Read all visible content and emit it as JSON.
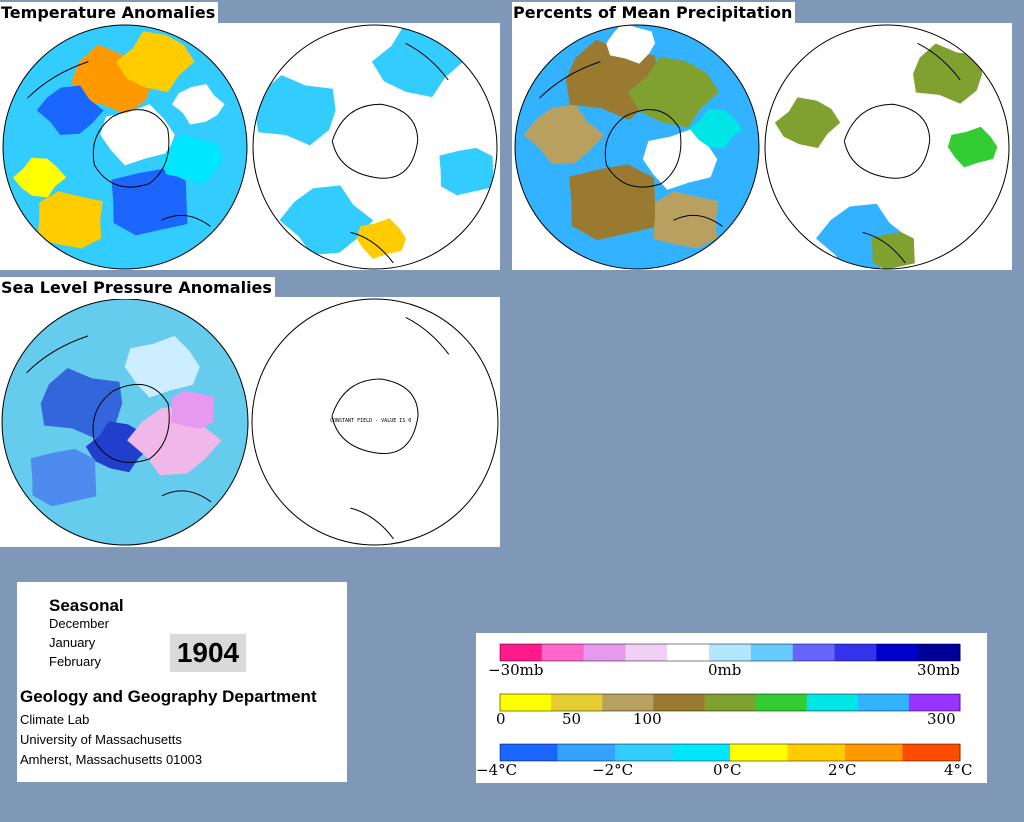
{
  "titles": {
    "temperature": "Temperature Anomalies",
    "precipitation": "Percents of Mean Precipitation",
    "pressure": "Sea Level Pressure Anomalies"
  },
  "map_note": "CONSTANT FIELD - VALUE IS 0",
  "info": {
    "season": "Seasonal",
    "months": [
      "December",
      "January",
      "February"
    ],
    "year": "1904",
    "department": "Geology and Geography Department",
    "lines": [
      "Climate Lab",
      "University of Massachusetts",
      "Amherst, Massachusetts 01003"
    ]
  },
  "legends": {
    "pressure": {
      "labels": [
        "−30mb",
        "0mb",
        "30mb"
      ],
      "colors": [
        "#ff1a8c",
        "#ff66cc",
        "#e699ee",
        "#f0d0f5",
        "#ffffff",
        "#b3e6ff",
        "#66ccff",
        "#6666ff",
        "#3333ee",
        "#0000cc",
        "#000099"
      ]
    },
    "precipitation": {
      "labels": [
        "0",
        "50",
        "100",
        "300"
      ],
      "colors": [
        "#ffff00",
        "#e6cc33",
        "#b8a060",
        "#9a7a30",
        "#80a030",
        "#33cc33",
        "#00e6e6",
        "#33b3ff",
        "#9933ff"
      ]
    },
    "temperature": {
      "labels": [
        "−4°C",
        "−2°C",
        "0°C",
        "2°C",
        "4°C"
      ],
      "colors": [
        "#1a66ff",
        "#33a3ff",
        "#33ccff",
        "#00e6ff",
        "#ffff00",
        "#ffcc00",
        "#ff9900",
        "#ff4d00"
      ]
    }
  }
}
